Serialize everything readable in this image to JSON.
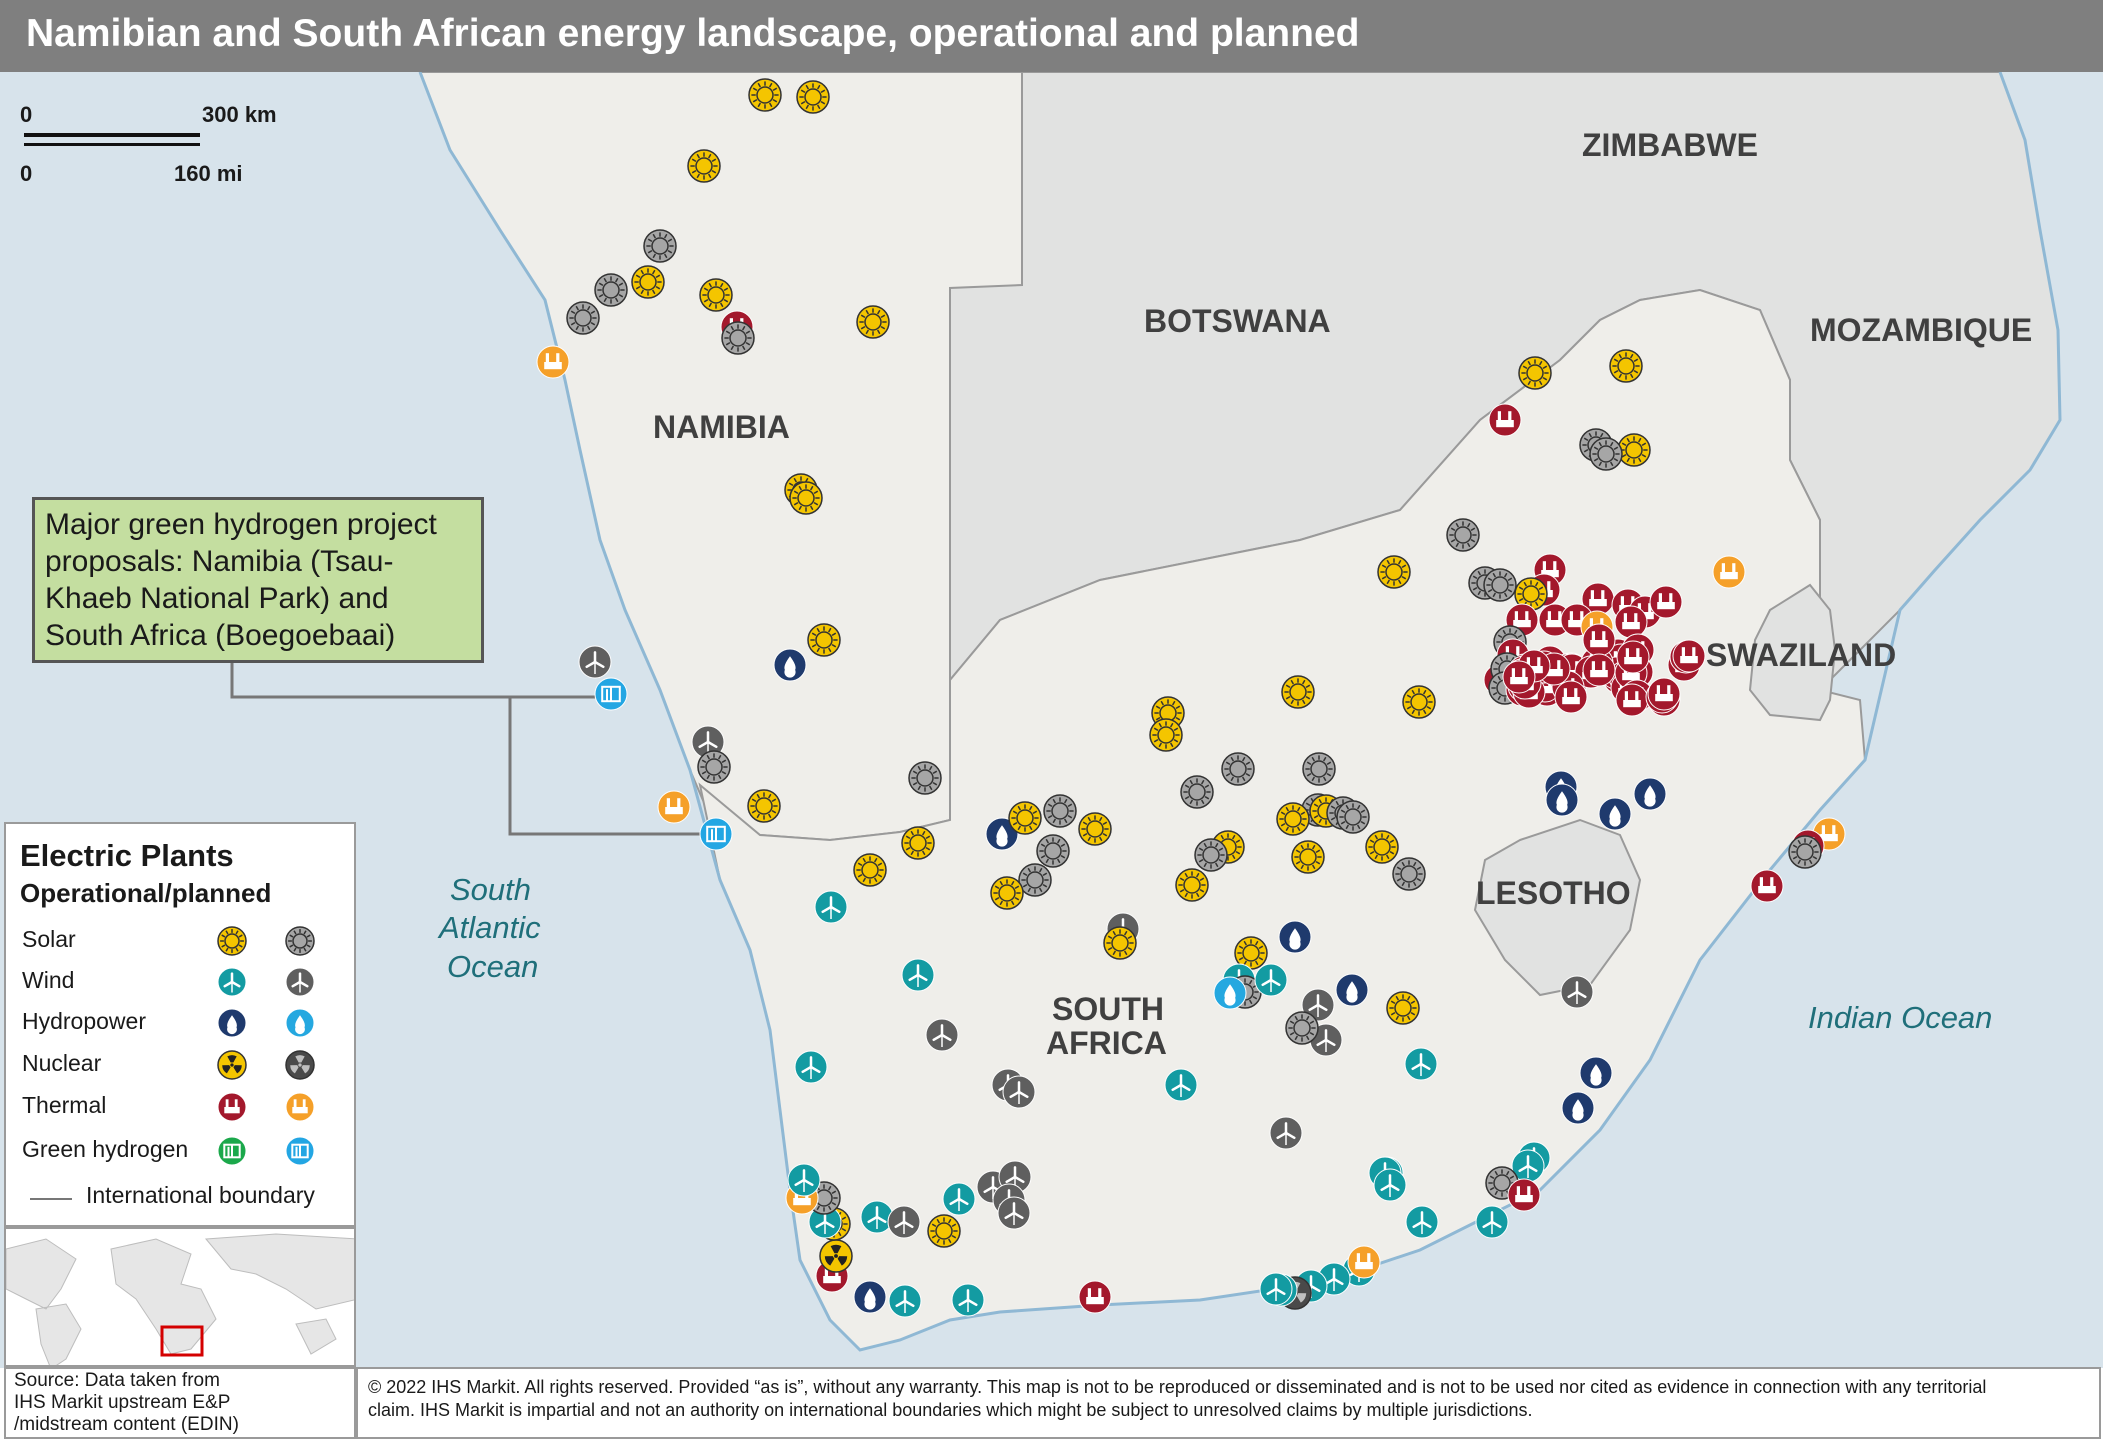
{
  "title": "Namibian and South African energy landscape, operational and planned",
  "scale": {
    "km_zero": "0",
    "km_label": "300 km",
    "mi_zero": "0",
    "mi_label": "160 mi"
  },
  "countries": {
    "zimbabwe": "ZIMBABWE",
    "botswana": "BOTSWANA",
    "mozambique": "MOZAMBIQUE",
    "namibia": "NAMIBIA",
    "swaziland": "SWAZILAND",
    "lesotho": "LESOTHO",
    "south_africa_1": "SOUTH",
    "south_africa_2": "AFRICA"
  },
  "oceans": {
    "south_atlantic_1": "South",
    "south_atlantic_2": "Atlantic",
    "south_atlantic_3": "Ocean",
    "indian": "Indian Ocean"
  },
  "callout": {
    "line1": "Major green hydrogen project",
    "line2": "proposals: Namibia (Tsau-",
    "line3": "Khaeb National Park) and",
    "line4": "South Africa (Boegoebaai)"
  },
  "legend": {
    "title": "Electric Plants",
    "subtitle": "Operational/planned",
    "rows": [
      {
        "label": "Solar",
        "operational_icon": "solar-operational-icon",
        "planned_icon": "solar-planned-icon"
      },
      {
        "label": "Wind",
        "operational_icon": "wind-operational-icon",
        "planned_icon": "wind-planned-icon"
      },
      {
        "label": "Hydropower",
        "operational_icon": "hydro-operational-icon",
        "planned_icon": "hydro-planned-icon"
      },
      {
        "label": "Nuclear",
        "operational_icon": "nuclear-operational-icon",
        "planned_icon": "nuclear-planned-icon"
      },
      {
        "label": "Thermal",
        "operational_icon": "thermal-operational-icon",
        "planned_icon": "thermal-planned-icon"
      },
      {
        "label": "Green hydrogen",
        "operational_icon": "hydrogen-operational-icon",
        "planned_icon": "hydrogen-planned-icon"
      }
    ],
    "boundary_label": "International boundary"
  },
  "colors": {
    "land": "#efeeea",
    "neighbour_land": "#e1e2e1",
    "sea": "#d7e3eb",
    "coast": "#8fb8d4",
    "solar_operational": "#f4c500",
    "solar_planned": "#a6a6a6",
    "wind_operational": "#139ba2",
    "wind_planned": "#5f5f5f",
    "hydro_operational": "#1f3a6d",
    "hydro_planned": "#25a8e0",
    "nuclear_operational": "#f4c500",
    "nuclear_planned": "#4a4a4a",
    "thermal_operational": "#a3182c",
    "thermal_planned": "#f5a029",
    "hydrogen_operational": "#1ba84b",
    "hydrogen_planned": "#23a6e3"
  },
  "footer": {
    "source_line1": "Source: Data taken  from",
    "source_line2": "IHS Markit upstream E&P",
    "source_line3": "/midstream content (EDIN)",
    "copyright_line1": "© 2022 IHS Markit. All rights reserved. Provided “as is”, without any warranty. This map is not to be reproduced or disseminated and is not to be used nor cited as evidence in connection with any territorial",
    "copyright_line2": "claim. IHS Markit is impartial and not an authority on international boundaries which might be subject to unresolved claims by multiple jurisdictions."
  }
}
